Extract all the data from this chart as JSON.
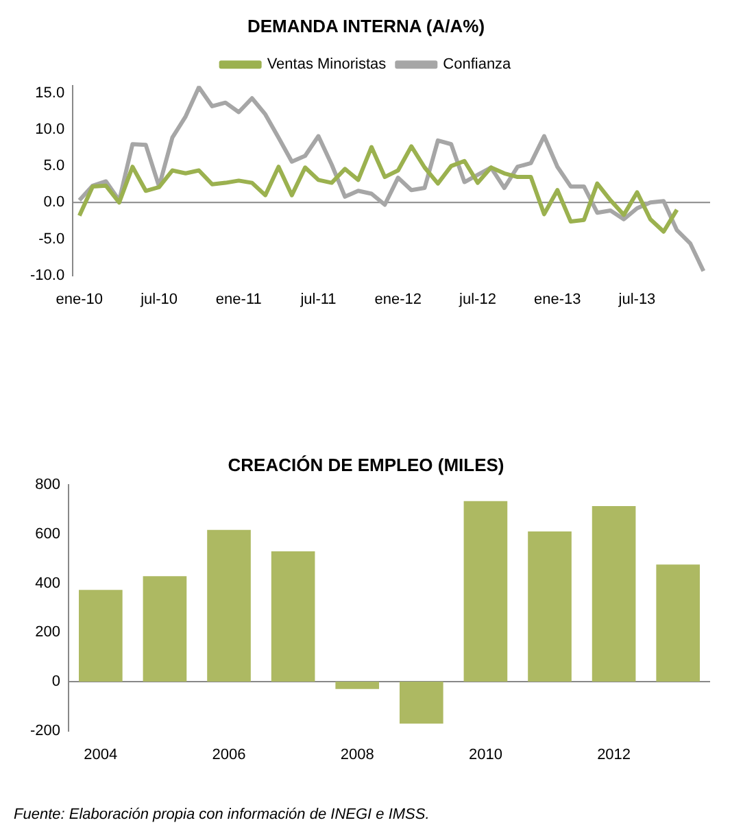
{
  "chart_data": [
    {
      "type": "line",
      "title": "DEMANDA INTERNA (A/A%)",
      "categories": [
        "ene-10",
        null,
        null,
        null,
        null,
        null,
        "jul-10",
        null,
        null,
        null,
        null,
        null,
        "ene-11",
        null,
        null,
        null,
        null,
        null,
        "jul-11",
        null,
        null,
        null,
        null,
        null,
        "ene-12",
        null,
        null,
        null,
        null,
        null,
        "jul-12",
        null,
        null,
        null,
        null,
        null,
        "ene-13",
        null,
        null,
        null,
        null,
        null,
        "jul-13",
        null,
        null,
        null,
        null,
        null
      ],
      "series": [
        {
          "name": "Ventas Minoristas",
          "color": "#9bb14f",
          "values": [
            -1.8,
            2.2,
            2.3,
            0,
            4.9,
            1.6,
            2.1,
            4.4,
            4.0,
            4.4,
            2.5,
            2.7,
            3.0,
            2.7,
            1.0,
            4.9,
            1.0,
            4.8,
            3.1,
            2.7,
            4.6,
            3.1,
            7.6,
            3.5,
            4.4,
            7.7,
            4.8,
            2.6,
            5.0,
            5.7,
            2.7,
            4.8,
            4.0,
            3.5,
            3.5,
            -1.6,
            1.7,
            -2.6,
            -2.4,
            2.6,
            0.3,
            -1.7,
            1.4,
            -2.3,
            -4.0,
            -1.0,
            null,
            null
          ]
        },
        {
          "name": "Confianza",
          "color": "#a6a6a6",
          "values": [
            0.3,
            2.3,
            2.9,
            0.3,
            8.0,
            7.9,
            2.2,
            8.9,
            11.8,
            15.8,
            13.2,
            13.7,
            12.4,
            14.3,
            12.1,
            8.9,
            5.6,
            6.4,
            9.1,
            5.2,
            0.8,
            1.6,
            1.2,
            -0.3,
            3.4,
            1.7,
            2.0,
            8.5,
            8.0,
            2.8,
            3.8,
            4.8,
            2.0,
            4.9,
            5.4,
            9.1,
            4.9,
            2.2,
            2.2,
            -1.4,
            -1.1,
            -2.3,
            -0.8,
            0,
            0.2,
            -3.8,
            -5.6,
            -9.4
          ]
        }
      ],
      "ylim": [
        -10,
        16
      ],
      "ref_lines": [
        {
          "axis": "y",
          "value": 0,
          "color": "#888888"
        }
      ],
      "yticks": [
        {
          "value": -10,
          "label": "-10.0"
        },
        {
          "value": -5,
          "label": "-5.0"
        },
        {
          "value": 0,
          "label": "0.0"
        },
        {
          "value": 5,
          "label": "5.0"
        },
        {
          "value": 10,
          "label": "10.0"
        },
        {
          "value": 15,
          "label": "15.0"
        }
      ],
      "legend": "top",
      "marker": "none"
    },
    {
      "type": "bar",
      "title": "CREACIÓN DE EMPLEO (MILES)",
      "categories": [
        "2004",
        null,
        "2006",
        null,
        "2008",
        null,
        "2010",
        null,
        "2012",
        null
      ],
      "values": [
        373,
        429,
        617,
        530,
        -30,
        -171,
        734,
        611,
        714,
        476
      ],
      "color": "#adb962",
      "ylim": [
        -200,
        800
      ],
      "yticks": [
        -200,
        0,
        200,
        400,
        600,
        800
      ],
      "ref_lines": [
        {
          "axis": "y",
          "value": 0,
          "color": "#888888"
        }
      ],
      "annotations": [
        "Fuente: Elaboración propia con información de INEGI e IMSS."
      ]
    }
  ]
}
